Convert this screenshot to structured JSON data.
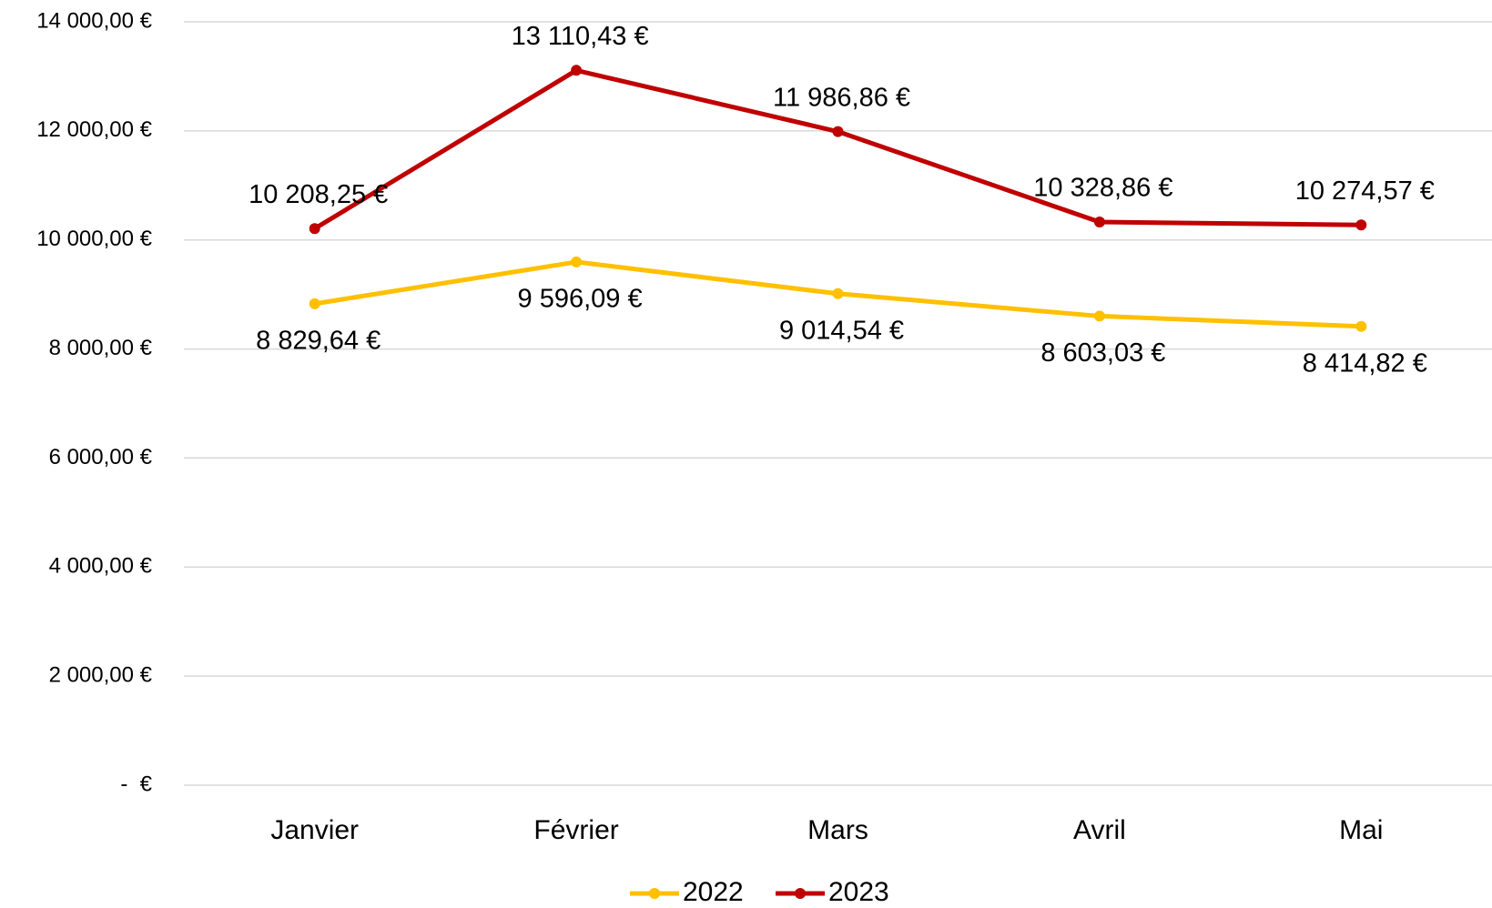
{
  "chart_data": {
    "type": "line",
    "categories": [
      "Janvier",
      "Février",
      "Mars",
      "Avril",
      "Mai"
    ],
    "series": [
      {
        "name": "2022",
        "color": "#FFC000",
        "values": [
          8829.64,
          9596.09,
          9014.54,
          8603.03,
          8414.82
        ],
        "value_labels": [
          "8 829,64 €",
          "9 596,09 €",
          "9 014,54 €",
          "8 603,03 €",
          "8 414,82 €"
        ]
      },
      {
        "name": "2023",
        "color": "#C00000",
        "values": [
          10208.25,
          13110.43,
          11986.86,
          10328.86,
          10274.57
        ],
        "value_labels": [
          "10 208,25 €",
          "13 110,43 €",
          "11 986,86 €",
          "10 328,86 €",
          "10 274,57 €"
        ]
      }
    ],
    "ylim": [
      0,
      14000
    ],
    "yticks": [
      {
        "value": 0,
        "label": "-  €"
      },
      {
        "value": 2000,
        "label": "2 000,00 €"
      },
      {
        "value": 4000,
        "label": "4 000,00 €"
      },
      {
        "value": 6000,
        "label": "6 000,00 €"
      },
      {
        "value": 8000,
        "label": "8 000,00 €"
      },
      {
        "value": 10000,
        "label": "10 000,00 €"
      },
      {
        "value": 12000,
        "label": "12 000,00 €"
      },
      {
        "value": 14000,
        "label": "14 000,00 €"
      }
    ],
    "grid": true,
    "legend": "bottom"
  }
}
